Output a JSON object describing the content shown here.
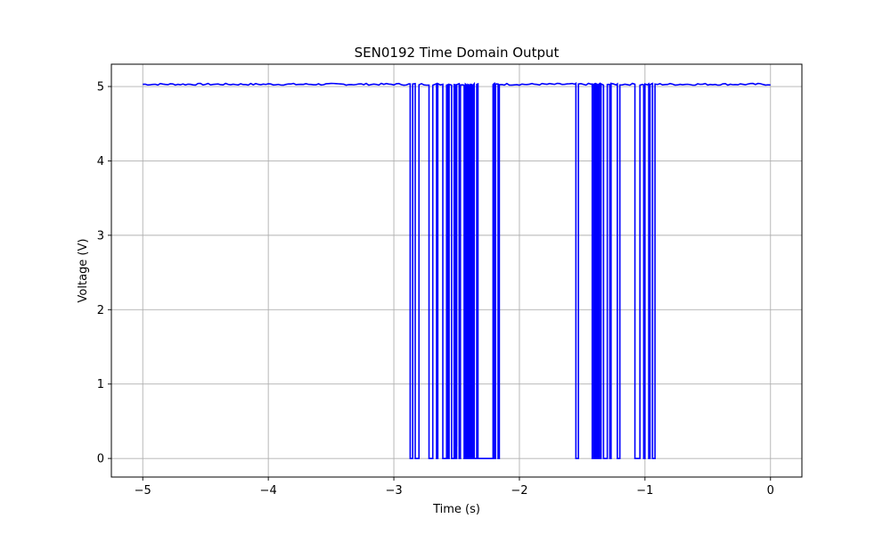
{
  "chart_data": {
    "type": "line",
    "title": "SEN0192 Time Domain Output",
    "xlabel": "Time (s)",
    "ylabel": "Voltage (V)",
    "xlim": [
      -5.25,
      0.25
    ],
    "ylim": [
      -0.25,
      5.3
    ],
    "xticks": [
      -5,
      -4,
      -3,
      -2,
      -1,
      0
    ],
    "xtick_labels": [
      "−5",
      "−4",
      "−3",
      "−2",
      "−1",
      "0"
    ],
    "yticks": [
      0,
      1,
      2,
      3,
      4,
      5
    ],
    "ytick_labels": [
      "0",
      "1",
      "2",
      "3",
      "4",
      "5"
    ],
    "grid": true,
    "series": [
      {
        "color": "#0000ff",
        "high": 5.03,
        "low": 0.0,
        "x_start": -5.0,
        "x_end": 0.0,
        "low_intervals": [
          [
            -2.87,
            -2.85
          ],
          [
            -2.83,
            -2.8
          ],
          [
            -2.72,
            -2.69
          ],
          [
            -2.66,
            -2.65
          ],
          [
            -2.61,
            -2.58
          ],
          [
            -2.57,
            -2.56
          ],
          [
            -2.54,
            -2.52
          ],
          [
            -2.51,
            -2.5
          ],
          [
            -2.48,
            -2.47
          ],
          [
            -2.44,
            -2.43
          ],
          [
            -2.42,
            -2.41
          ],
          [
            -2.4,
            -2.39
          ],
          [
            -2.38,
            -2.37
          ],
          [
            -2.36,
            -2.34
          ],
          [
            -2.33,
            -2.21
          ],
          [
            -2.2,
            -2.19
          ],
          [
            -2.17,
            -2.16
          ],
          [
            -1.55,
            -1.53
          ],
          [
            -1.42,
            -1.41
          ],
          [
            -1.4,
            -1.39
          ],
          [
            -1.38,
            -1.37
          ],
          [
            -1.36,
            -1.35
          ],
          [
            -1.33,
            -1.3
          ],
          [
            -1.28,
            -1.27
          ],
          [
            -1.22,
            -1.2
          ],
          [
            -1.08,
            -1.04
          ],
          [
            -1.01,
            -1.0
          ],
          [
            -0.97,
            -0.96
          ],
          [
            -0.94,
            -0.92
          ]
        ],
        "mid_drop": {
          "x": -2.505,
          "y": 0.17
        }
      }
    ]
  }
}
